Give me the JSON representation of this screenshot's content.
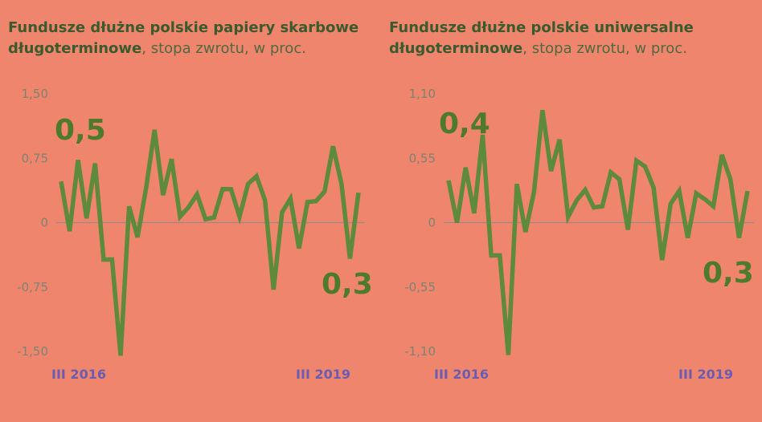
{
  "chart_data": [
    {
      "type": "line",
      "title_bold": "Fundusze dłużne polskie papiery skarbowe długoterminowe",
      "title_rest": ", stopa zwrotu, w proc.",
      "x_tick_labels": [
        "III 2016",
        "III 2019"
      ],
      "y_ticks": [
        1.5,
        0.75,
        0,
        -0.75,
        -1.5
      ],
      "y_tick_labels": [
        "1,50",
        "0,75",
        "0",
        "-0,75",
        "-1,50"
      ],
      "ylim": [
        -1.5,
        1.5
      ],
      "annotations": [
        "0,5",
        "0,3"
      ],
      "color": "#5e8a3c",
      "series": [
        {
          "values": [
            0.48,
            -0.1,
            0.73,
            0.05,
            0.69,
            -0.43,
            -0.43,
            -1.55,
            0.19,
            -0.17,
            0.4,
            1.08,
            0.32,
            0.74,
            0.07,
            0.18,
            0.33,
            0.04,
            0.06,
            0.39,
            0.39,
            0.07,
            0.45,
            0.54,
            0.26,
            -0.78,
            0.12,
            0.28,
            -0.3,
            0.24,
            0.25,
            0.36,
            0.89,
            0.45,
            -0.42,
            0.35
          ]
        }
      ]
    },
    {
      "type": "line",
      "title_bold": "Fundusze dłużne polskie uniwersalne długoterminowe",
      "title_rest": ", stopa zwrotu, w proc.",
      "x_tick_labels": [
        "III 2016",
        "III 2019"
      ],
      "y_ticks": [
        1.1,
        0.55,
        0,
        -0.55,
        -1.1
      ],
      "y_tick_labels": [
        "1,10",
        "0,55",
        "0",
        "-0,55",
        "-1,10"
      ],
      "ylim": [
        -1.1,
        1.1
      ],
      "annotations": [
        "0,4",
        "0,3"
      ],
      "color": "#5e8a3c",
      "series": [
        {
          "values": [
            0.36,
            0.0,
            0.47,
            0.08,
            0.75,
            -0.28,
            -0.28,
            -1.13,
            0.33,
            -0.08,
            0.26,
            0.96,
            0.44,
            0.71,
            0.05,
            0.19,
            0.28,
            0.13,
            0.14,
            0.43,
            0.37,
            -0.06,
            0.53,
            0.48,
            0.3,
            -0.32,
            0.16,
            0.27,
            -0.13,
            0.25,
            0.2,
            0.14,
            0.58,
            0.37,
            -0.13,
            0.27
          ]
        }
      ]
    }
  ]
}
